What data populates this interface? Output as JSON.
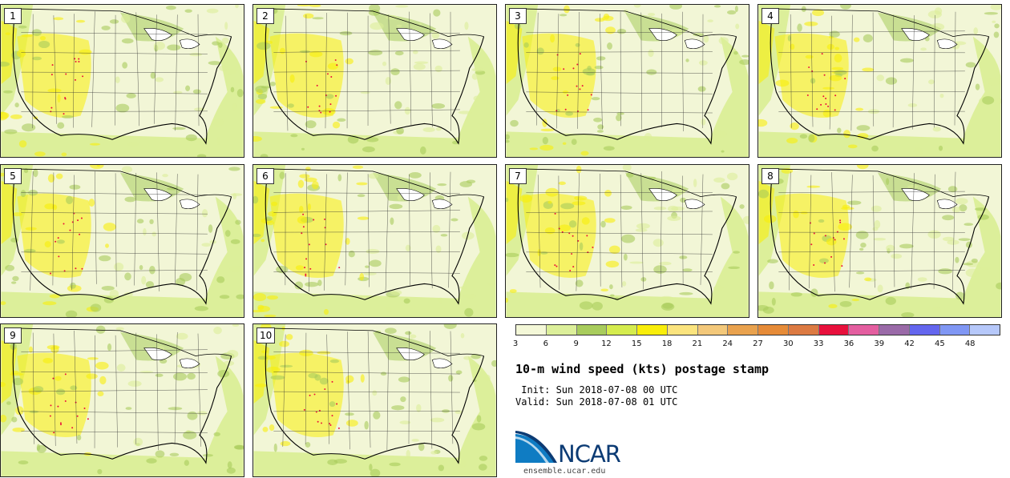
{
  "panels": [
    {
      "label": "1"
    },
    {
      "label": "2"
    },
    {
      "label": "3"
    },
    {
      "label": "4"
    },
    {
      "label": "5"
    },
    {
      "label": "6"
    },
    {
      "label": "7"
    },
    {
      "label": "8"
    },
    {
      "label": "9"
    },
    {
      "label": "10"
    }
  ],
  "colorbar": {
    "ticks": [
      "3",
      "6",
      "9",
      "12",
      "15",
      "18",
      "21",
      "24",
      "27",
      "30",
      "33",
      "36",
      "39",
      "42",
      "45",
      "48"
    ],
    "colors": [
      "#f4f8d8",
      "#dcef9a",
      "#a8cc5c",
      "#d5ec4e",
      "#f9ee0a",
      "#fbe47e",
      "#f3c87a",
      "#e9a24e",
      "#e68b38",
      "#dc7a42",
      "#e8103c",
      "#e45ea0",
      "#9a6aa8",
      "#6466ee",
      "#8097f4",
      "#b6c8fa"
    ]
  },
  "title": "10-m wind speed (kts) postage stamp",
  "init": " Init: Sun 2018-07-08 00 UTC",
  "valid": "Valid: Sun 2018-07-08 01 UTC",
  "logo": {
    "text": "NCAR",
    "url_text": "ensemble.ucar.edu"
  },
  "colors": {
    "land_base": "#f2f6d6",
    "green": "#a8cc5c",
    "yellow": "#f9ee0a",
    "light_yellow": "#dcef9a",
    "border": "#222222",
    "coast": "#000000",
    "ncar_blue": "#0c3b74"
  }
}
